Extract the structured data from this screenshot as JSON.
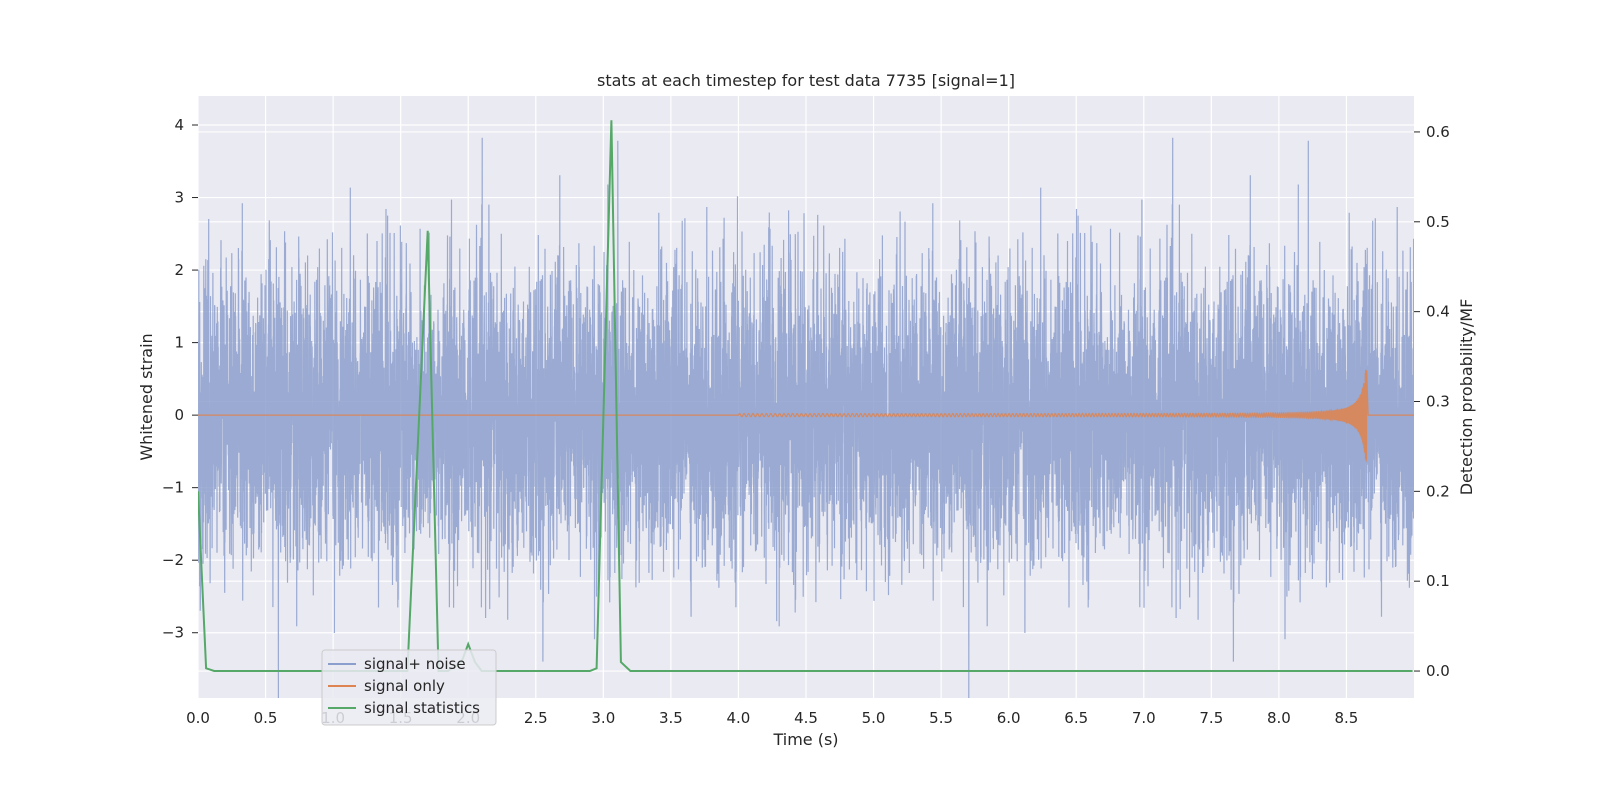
{
  "chart_data": {
    "type": "line",
    "title": "stats at each timestep for test data 7735 [signal=1]",
    "xlabel": "Time (s)",
    "ylabel": "Whitened strain",
    "ylabel_right": "Detection probability/MF",
    "xlim": [
      0.0,
      9.0
    ],
    "ylim": [
      -3.9,
      4.4
    ],
    "ylim_right": [
      -0.03,
      0.64
    ],
    "x_ticks": [
      "0.0",
      "0.5",
      "1.0",
      "1.5",
      "2.0",
      "2.5",
      "3.0",
      "3.5",
      "4.0",
      "4.5",
      "5.0",
      "5.5",
      "6.0",
      "6.5",
      "7.0",
      "7.5",
      "8.0",
      "8.5"
    ],
    "y_ticks_left": [
      "−3",
      "−2",
      "−1",
      "0",
      "1",
      "2",
      "3",
      "4"
    ],
    "y_ticks_right": [
      "0.0",
      "0.1",
      "0.2",
      "0.3",
      "0.4",
      "0.5",
      "0.6"
    ],
    "grid": true,
    "legend_position": "lower-left",
    "series": [
      {
        "name": "signal+ noise",
        "axis": "left",
        "color": "#8c9fcc",
        "kind": "noise",
        "sample_rate_hz": 2048,
        "duration_s": 9.0,
        "std": 1.0,
        "max_abs": 4.0
      },
      {
        "name": "signal only",
        "axis": "left",
        "color": "#dd8452",
        "kind": "chirp",
        "start_s": 4.0,
        "merger_s": 8.65,
        "peak_amplitude": 0.7,
        "end_amplitude": 0.02
      },
      {
        "name": "signal statistics",
        "axis": "right",
        "color": "#55a868",
        "x": [
          0.0,
          0.06,
          0.12,
          1.55,
          1.7,
          1.78,
          1.85,
          1.95,
          2.0,
          2.05,
          2.1,
          2.15,
          2.9,
          2.95,
          3.06,
          3.13,
          3.2,
          8.99
        ],
        "y": [
          0.2,
          0.003,
          0.0,
          0.0,
          0.49,
          0.0,
          0.0,
          0.01,
          0.03,
          0.01,
          0.0,
          0.0,
          0.0,
          0.003,
          0.613,
          0.01,
          0.0,
          0.0
        ]
      }
    ]
  }
}
